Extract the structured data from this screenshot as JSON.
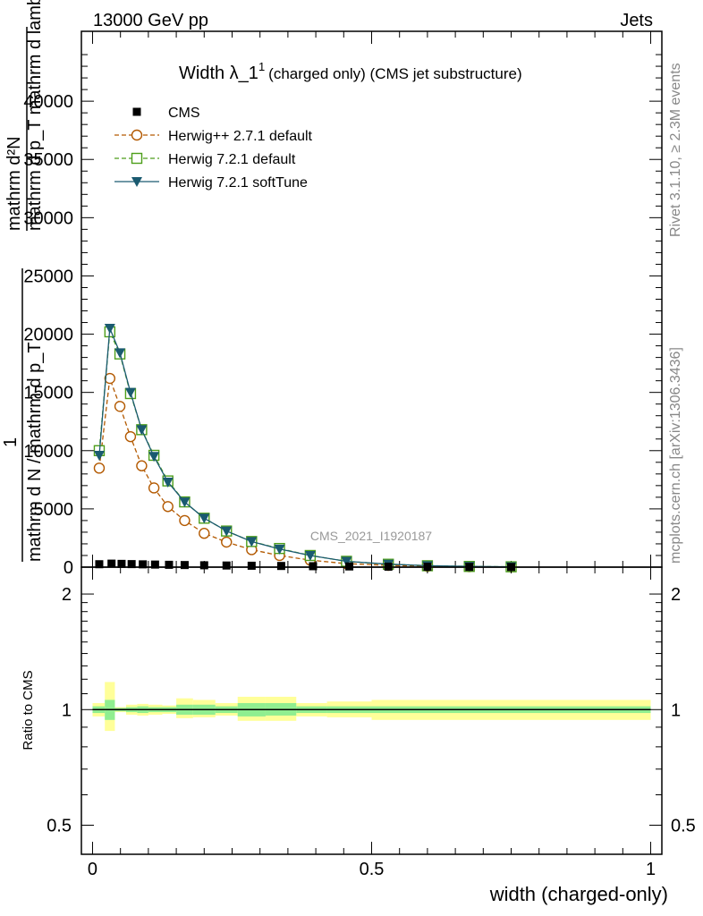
{
  "header": {
    "left": "13000 GeV pp",
    "right": "Jets"
  },
  "side_texts": {
    "rivet": "Rivet 3.1.10, ≥ 2.3M events",
    "mcplots": "mcplots.cern.ch [arXiv:1306.3436]"
  },
  "ylabel_main": {
    "numerator": "mathrm d²N",
    "denominator": "mathrm d p_T mathrm d lambda",
    "prefix": "1",
    "prefix_den": "mathrm d N / mathrm d p_T"
  },
  "chart_data": [
    {
      "panel": "main",
      "type": "line",
      "title": "Width λ_1¹ (charged only) (CMS jet substructure)",
      "title_parts": {
        "main": "Width λ_1",
        "sup": "1",
        "rest": "(charged only) (CMS jet substructure)"
      },
      "watermark": "CMS_2021_I1920187",
      "xlim": [
        -0.02,
        1.02
      ],
      "ylim": [
        0,
        4600
      ],
      "y_ticks": [
        0,
        500,
        1000,
        1500,
        2000,
        2500,
        3000,
        3500,
        4000
      ],
      "y_tick_labels": [
        "0",
        "5000",
        "10000",
        "15000",
        "20000",
        "25000",
        "30000",
        "35000",
        "40000"
      ],
      "legend_position": "top-left",
      "series": [
        {
          "name": "CMS",
          "style": "markers",
          "marker": "filled-square",
          "color": "#000000",
          "x": [
            0.012,
            0.034,
            0.052,
            0.07,
            0.09,
            0.112,
            0.137,
            0.165,
            0.2,
            0.24,
            0.285,
            0.338,
            0.395,
            0.46,
            0.53,
            0.6,
            0.675,
            0.75
          ],
          "y": [
            25,
            30,
            28,
            26,
            24,
            22,
            20,
            18,
            16,
            14,
            12,
            10,
            8,
            6,
            4,
            3,
            2,
            1
          ]
        },
        {
          "name": "Herwig++ 2.7.1 default",
          "style": "dashed",
          "marker": "open-circle",
          "color": "#b35900",
          "x": [
            0.012,
            0.031,
            0.049,
            0.068,
            0.088,
            0.11,
            0.135,
            0.165,
            0.2,
            0.24,
            0.285,
            0.335,
            0.39,
            0.455,
            0.53,
            0.6,
            0.675,
            0.75
          ],
          "y": [
            850,
            1620,
            1380,
            1120,
            870,
            680,
            520,
            400,
            290,
            215,
            150,
            100,
            60,
            30,
            15,
            8,
            4,
            2
          ]
        },
        {
          "name": "Herwig 7.2.1 default",
          "style": "dashed",
          "marker": "open-square",
          "color": "#4d9e1a",
          "x": [
            0.012,
            0.031,
            0.049,
            0.068,
            0.088,
            0.11,
            0.135,
            0.165,
            0.2,
            0.24,
            0.285,
            0.335,
            0.39,
            0.455,
            0.53,
            0.6,
            0.675,
            0.75
          ],
          "y": [
            1000,
            2020,
            1830,
            1490,
            1180,
            960,
            740,
            560,
            420,
            310,
            220,
            160,
            100,
            50,
            25,
            12,
            6,
            3
          ]
        },
        {
          "name": "Herwig 7.2.1 softTune",
          "style": "solid",
          "marker": "filled-triangle-down",
          "color": "#1a5a70",
          "x": [
            0.012,
            0.031,
            0.049,
            0.068,
            0.088,
            0.11,
            0.135,
            0.165,
            0.2,
            0.24,
            0.285,
            0.335,
            0.39,
            0.455,
            0.53,
            0.6,
            0.675,
            0.75
          ],
          "y": [
            960,
            2050,
            1840,
            1500,
            1180,
            950,
            730,
            560,
            420,
            310,
            220,
            155,
            100,
            50,
            25,
            12,
            6,
            3
          ]
        }
      ]
    },
    {
      "panel": "ratio",
      "type": "area",
      "ylabel": "Ratio to CMS",
      "xlabel": "width (charged-only)",
      "yscale": "log",
      "ylim": [
        0.42,
        2.35
      ],
      "y_ticks": [
        0.5,
        1,
        2
      ],
      "y_tick_labels": [
        "0.5",
        "1",
        "2"
      ],
      "xlim": [
        -0.02,
        1.02
      ],
      "x_ticks": [
        0,
        0.5,
        1
      ],
      "x_tick_labels": [
        "0",
        "0.5",
        "1"
      ],
      "reference": 1.0,
      "bands": [
        {
          "name": "stat",
          "color": "#90ee90"
        },
        {
          "name": "total",
          "color": "#ffff99"
        }
      ],
      "bins": [
        {
          "x0": 0.0,
          "x1": 0.022,
          "stat": [
            0.98,
            1.02
          ],
          "total": [
            0.96,
            1.04
          ]
        },
        {
          "x0": 0.022,
          "x1": 0.04,
          "stat": [
            0.94,
            1.06
          ],
          "total": [
            0.88,
            1.18
          ]
        },
        {
          "x0": 0.04,
          "x1": 0.06,
          "stat": [
            0.99,
            1.01
          ],
          "total": [
            0.985,
            1.015
          ]
        },
        {
          "x0": 0.06,
          "x1": 0.08,
          "stat": [
            0.985,
            1.015
          ],
          "total": [
            0.97,
            1.03
          ]
        },
        {
          "x0": 0.08,
          "x1": 0.1,
          "stat": [
            0.98,
            1.02
          ],
          "total": [
            0.965,
            1.035
          ]
        },
        {
          "x0": 0.1,
          "x1": 0.125,
          "stat": [
            0.985,
            1.015
          ],
          "total": [
            0.97,
            1.03
          ]
        },
        {
          "x0": 0.125,
          "x1": 0.15,
          "stat": [
            0.985,
            1.015
          ],
          "total": [
            0.975,
            1.025
          ]
        },
        {
          "x0": 0.15,
          "x1": 0.18,
          "stat": [
            0.97,
            1.03
          ],
          "total": [
            0.95,
            1.07
          ]
        },
        {
          "x0": 0.18,
          "x1": 0.22,
          "stat": [
            0.97,
            1.03
          ],
          "total": [
            0.955,
            1.06
          ]
        },
        {
          "x0": 0.22,
          "x1": 0.26,
          "stat": [
            0.98,
            1.02
          ],
          "total": [
            0.965,
            1.04
          ]
        },
        {
          "x0": 0.26,
          "x1": 0.31,
          "stat": [
            0.96,
            1.04
          ],
          "total": [
            0.935,
            1.08
          ]
        },
        {
          "x0": 0.31,
          "x1": 0.365,
          "stat": [
            0.965,
            1.04
          ],
          "total": [
            0.935,
            1.08
          ]
        },
        {
          "x0": 0.365,
          "x1": 0.42,
          "stat": [
            0.98,
            1.02
          ],
          "total": [
            0.96,
            1.04
          ]
        },
        {
          "x0": 0.42,
          "x1": 0.5,
          "stat": [
            0.98,
            1.02
          ],
          "total": [
            0.955,
            1.05
          ]
        },
        {
          "x0": 0.5,
          "x1": 1.0,
          "stat": [
            0.98,
            1.02
          ],
          "total": [
            0.94,
            1.06
          ]
        }
      ]
    }
  ]
}
